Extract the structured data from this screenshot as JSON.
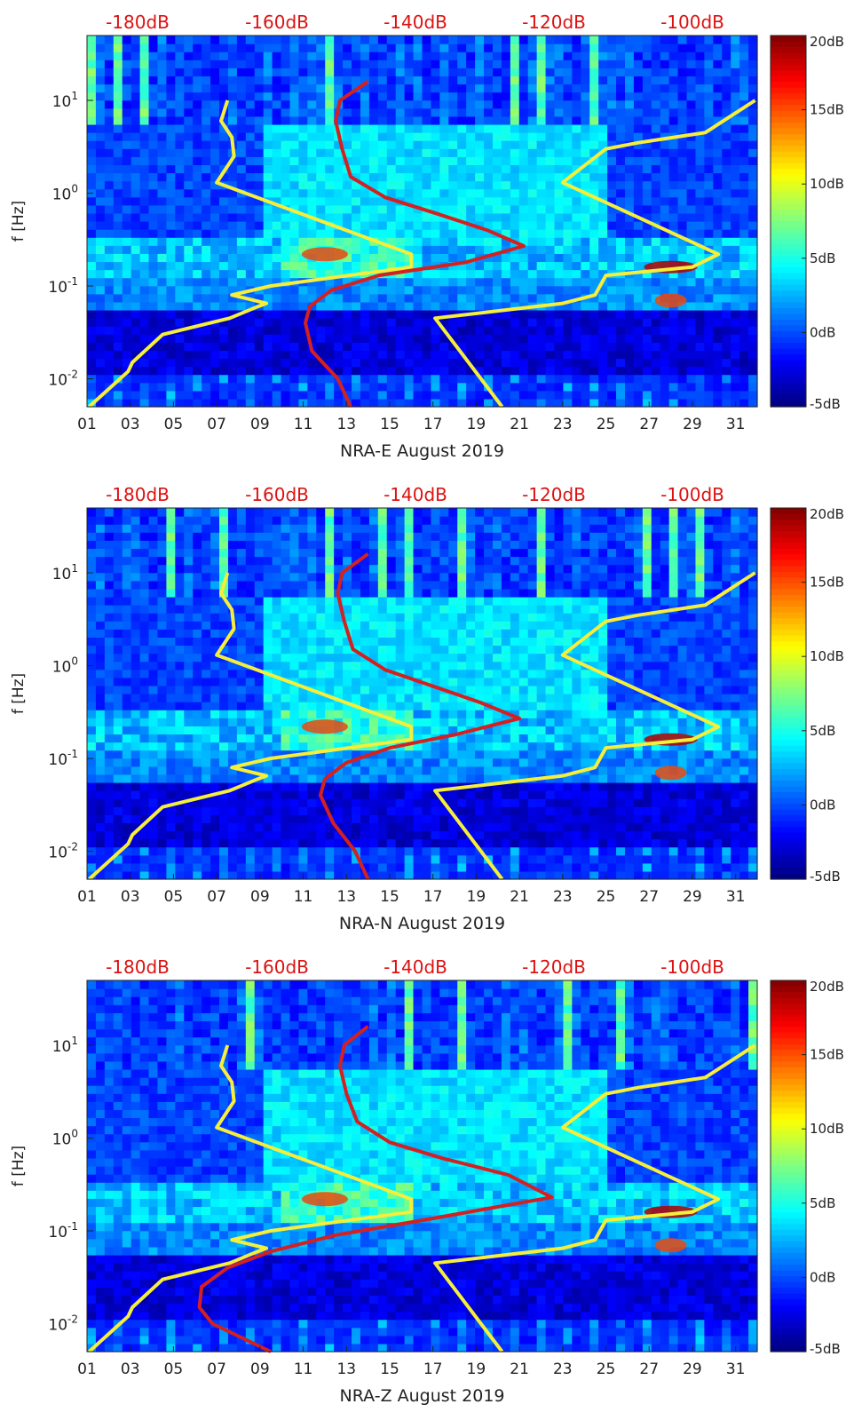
{
  "colors": {
    "noise_model_curves": "#f5ee3a",
    "psd_curve": "#d42020",
    "top_axis_labels": "#dd1111",
    "colormap": "jet"
  },
  "chart_data": [
    {
      "type": "heatmap",
      "xlabel": "NRA-E August 2019",
      "ylabel": "f [Hz]",
      "x_ticks": [
        "01",
        "03",
        "05",
        "07",
        "09",
        "11",
        "13",
        "15",
        "17",
        "19",
        "21",
        "23",
        "25",
        "27",
        "29",
        "31"
      ],
      "xlim": [
        1,
        32
      ],
      "yscale": "log",
      "ylim": [
        0.005,
        50
      ],
      "y_ticks": [
        "10-2",
        "10-1",
        "100",
        "101"
      ],
      "y_tick_values": [
        0.01,
        0.1,
        1,
        10
      ],
      "top_axis_ticks": [
        "-180dB",
        "-160dB",
        "-140dB",
        "-120dB",
        "-100dB"
      ],
      "colorbar": {
        "ticks": [
          "20dB",
          "15dB",
          "10dB",
          "5dB",
          "0dB",
          "-5dB"
        ],
        "range": [
          -5,
          20
        ]
      },
      "series": [
        {
          "role": "noise-model-low",
          "x": [
            1.1,
            2.9,
            3.1,
            4.5,
            7.6,
            8.9,
            9.3,
            7.7,
            9.5,
            16.0,
            16.0,
            7.0,
            7.8,
            7.7,
            7.2,
            7.5
          ],
          "y": [
            0.005,
            0.012,
            0.015,
            0.03,
            0.045,
            0.06,
            0.065,
            0.08,
            0.1,
            0.16,
            0.22,
            1.3,
            2.5,
            4,
            6,
            10
          ]
        },
        {
          "role": "noise-model-high",
          "x": [
            20.2,
            17.1,
            23.0,
            24.5,
            25.0,
            29.0,
            30.2,
            23.0,
            25.0,
            26.5,
            29.6,
            31.9
          ],
          "y": [
            0.005,
            0.045,
            0.065,
            0.08,
            0.13,
            0.16,
            0.22,
            1.3,
            3.0,
            3.5,
            4.5,
            10
          ]
        },
        {
          "role": "psd-median",
          "x": [
            13.2,
            12.6,
            11.4,
            11.1,
            11.3,
            12.3,
            14.5,
            18.5,
            21.2,
            19.5,
            17.2,
            14.8,
            13.2,
            12.8,
            12.5,
            12.7,
            14.0
          ],
          "y": [
            0.005,
            0.01,
            0.02,
            0.04,
            0.06,
            0.09,
            0.13,
            0.18,
            0.27,
            0.4,
            0.6,
            0.9,
            1.5,
            3,
            6,
            10,
            16
          ]
        }
      ]
    },
    {
      "type": "heatmap",
      "xlabel": "NRA-N August 2019",
      "ylabel": "f [Hz]",
      "x_ticks": [
        "01",
        "03",
        "05",
        "07",
        "09",
        "11",
        "13",
        "15",
        "17",
        "19",
        "21",
        "23",
        "25",
        "27",
        "29",
        "31"
      ],
      "xlim": [
        1,
        32
      ],
      "yscale": "log",
      "ylim": [
        0.005,
        50
      ],
      "y_ticks": [
        "10-2",
        "10-1",
        "100",
        "101"
      ],
      "y_tick_values": [
        0.01,
        0.1,
        1,
        10
      ],
      "top_axis_ticks": [
        "-180dB",
        "-160dB",
        "-140dB",
        "-120dB",
        "-100dB"
      ],
      "colorbar": {
        "ticks": [
          "20dB",
          "15dB",
          "10dB",
          "5dB",
          "0dB",
          "-5dB"
        ],
        "range": [
          -5,
          20
        ]
      },
      "series": [
        {
          "role": "noise-model-low",
          "x": [
            1.1,
            2.9,
            3.1,
            4.5,
            7.6,
            8.9,
            9.3,
            7.7,
            9.5,
            16.0,
            16.0,
            7.0,
            7.8,
            7.7,
            7.2,
            7.5
          ],
          "y": [
            0.005,
            0.012,
            0.015,
            0.03,
            0.045,
            0.06,
            0.065,
            0.08,
            0.1,
            0.16,
            0.22,
            1.3,
            2.5,
            4,
            6,
            10
          ]
        },
        {
          "role": "noise-model-high",
          "x": [
            20.2,
            17.1,
            23.0,
            24.5,
            25.0,
            29.0,
            30.2,
            23.0,
            25.0,
            26.5,
            29.6,
            31.9
          ],
          "y": [
            0.005,
            0.045,
            0.065,
            0.08,
            0.13,
            0.16,
            0.22,
            1.3,
            3.0,
            3.5,
            4.5,
            10
          ]
        },
        {
          "role": "psd-median",
          "x": [
            14.0,
            13.4,
            12.4,
            11.8,
            12.0,
            13.0,
            15.0,
            18.0,
            21.0,
            19.2,
            17.0,
            14.8,
            13.3,
            12.9,
            12.6,
            12.8,
            14.0
          ],
          "y": [
            0.005,
            0.01,
            0.02,
            0.04,
            0.06,
            0.09,
            0.13,
            0.18,
            0.27,
            0.4,
            0.6,
            0.9,
            1.5,
            3,
            6,
            10,
            16
          ]
        }
      ]
    },
    {
      "type": "heatmap",
      "xlabel": "NRA-Z August 2019",
      "ylabel": "f [Hz]",
      "x_ticks": [
        "01",
        "03",
        "05",
        "07",
        "09",
        "11",
        "13",
        "15",
        "17",
        "19",
        "21",
        "23",
        "25",
        "27",
        "29",
        "31"
      ],
      "xlim": [
        1,
        32
      ],
      "yscale": "log",
      "ylim": [
        0.005,
        50
      ],
      "y_ticks": [
        "10-2",
        "10-1",
        "100",
        "101"
      ],
      "y_tick_values": [
        0.01,
        0.1,
        1,
        10
      ],
      "top_axis_ticks": [
        "-180dB",
        "-160dB",
        "-140dB",
        "-120dB",
        "-100dB"
      ],
      "colorbar": {
        "ticks": [
          "20dB",
          "15dB",
          "10dB",
          "5dB",
          "0dB",
          "-5dB"
        ],
        "range": [
          -5,
          20
        ]
      },
      "series": [
        {
          "role": "noise-model-low",
          "x": [
            1.1,
            2.9,
            3.1,
            4.5,
            7.6,
            8.9,
            9.3,
            7.7,
            9.5,
            16.0,
            16.0,
            7.0,
            7.8,
            7.7,
            7.2,
            7.5
          ],
          "y": [
            0.005,
            0.012,
            0.015,
            0.03,
            0.045,
            0.06,
            0.065,
            0.08,
            0.1,
            0.16,
            0.22,
            1.3,
            2.5,
            4,
            6,
            10
          ]
        },
        {
          "role": "noise-model-high",
          "x": [
            20.2,
            17.1,
            23.0,
            24.5,
            25.0,
            29.0,
            30.2,
            23.0,
            25.0,
            26.5,
            29.6,
            31.9
          ],
          "y": [
            0.005,
            0.045,
            0.065,
            0.08,
            0.13,
            0.16,
            0.22,
            1.3,
            3.0,
            3.5,
            4.5,
            10
          ]
        },
        {
          "role": "psd-median",
          "x": [
            9.5,
            6.8,
            6.2,
            6.3,
            7.5,
            9.5,
            12.5,
            16.5,
            22.5,
            20.5,
            17.5,
            15.0,
            13.5,
            13.0,
            12.7,
            12.9,
            14.0
          ],
          "y": [
            0.005,
            0.01,
            0.015,
            0.025,
            0.04,
            0.06,
            0.09,
            0.13,
            0.23,
            0.4,
            0.6,
            0.9,
            1.5,
            3,
            6,
            10,
            16
          ]
        }
      ]
    }
  ]
}
